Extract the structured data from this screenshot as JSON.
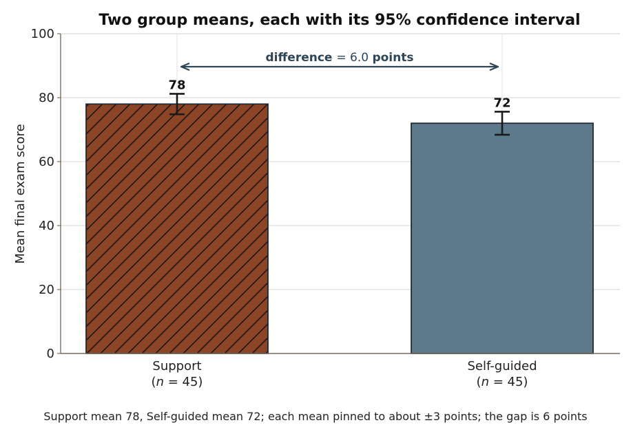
{
  "chart_data": {
    "type": "bar",
    "title": "Two group means, each with its 95% confidence interval",
    "ylabel": "Mean final exam score",
    "xlabel": "",
    "ylim": [
      0,
      100
    ],
    "yticks": [
      0,
      20,
      40,
      60,
      80,
      100
    ],
    "grid": true,
    "categories": [
      "Support",
      "Self-guided"
    ],
    "category_n": [
      "45",
      "45"
    ],
    "values": [
      78,
      72
    ],
    "ci_low": [
      74.8,
      68.4
    ],
    "ci_high": [
      81.2,
      75.6
    ],
    "data_labels": [
      "78",
      "72"
    ],
    "colors": [
      "#8b4426",
      "#5c7a8c"
    ],
    "hatch": [
      "diagonal",
      "none"
    ],
    "annotation": {
      "word": "difference",
      "equals": "=",
      "value": "6.0",
      "unit": "points",
      "color": "#2e4556"
    }
  },
  "caption": "Support mean 78, Self-guided mean 72; each mean pinned to about ±3 points; the gap is 6 points"
}
